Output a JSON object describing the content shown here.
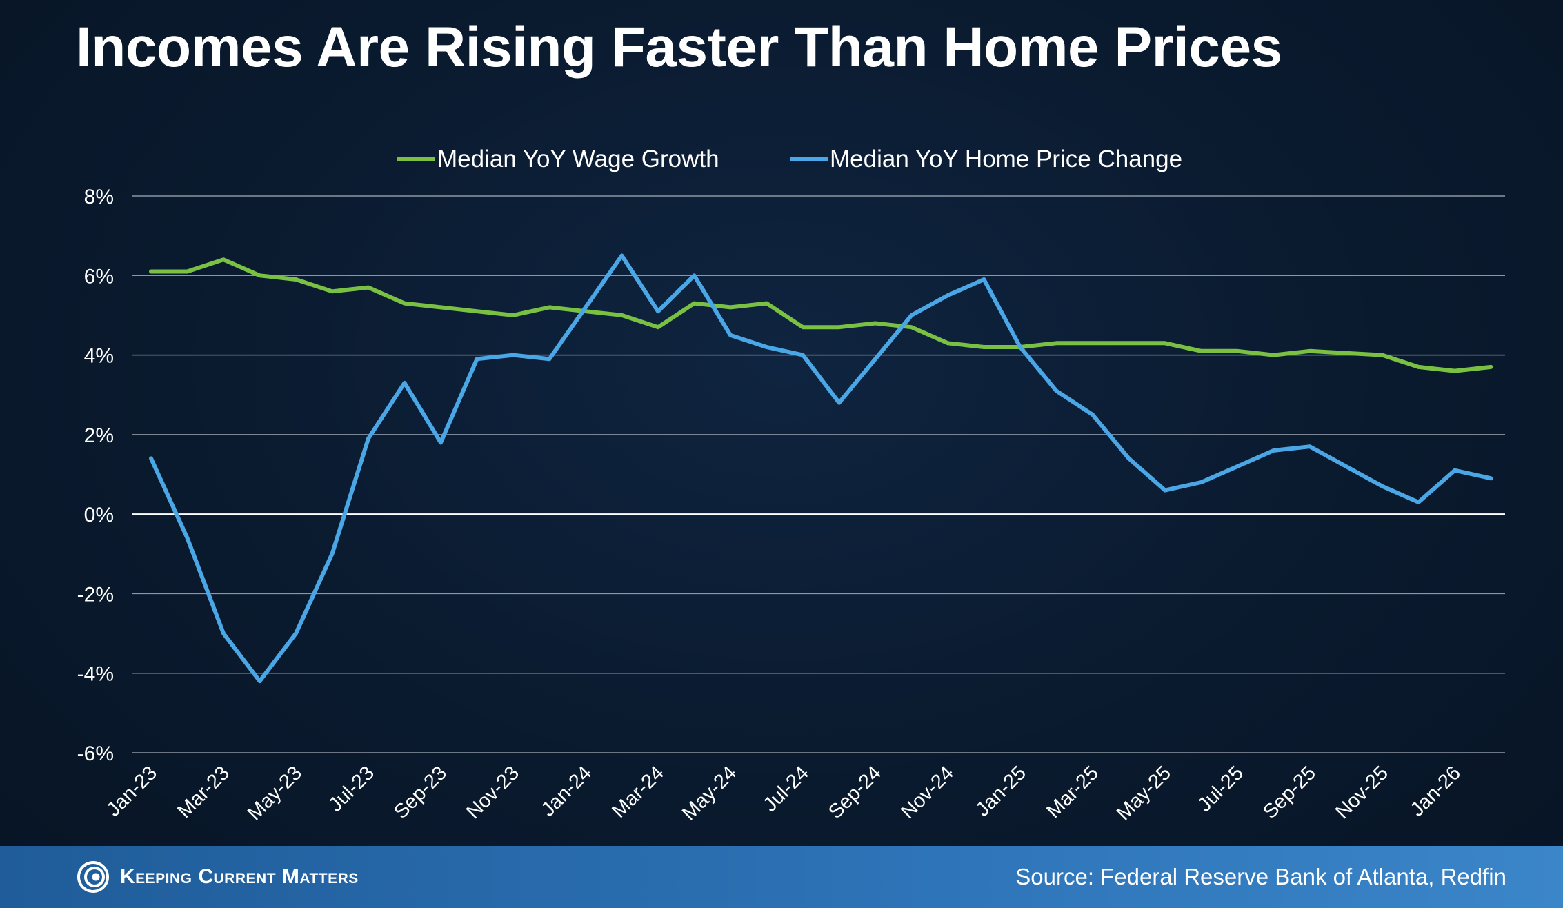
{
  "title": "Incomes Are Rising Faster Than Home Prices",
  "footer": {
    "brand": "Keeping Current Matters",
    "source": "Source: Federal Reserve Bank of Atlanta, Redfin"
  },
  "colors": {
    "wage": "#7ac143",
    "home": "#4ba6e6",
    "grid": "#8d96a3",
    "zero": "#ffffff"
  },
  "chart_data": {
    "type": "line",
    "title": "Incomes Are Rising Faster Than Home Prices",
    "xlabel": "",
    "ylabel": "",
    "ylim": [
      -6,
      8
    ],
    "y_ticks": [
      8,
      6,
      4,
      2,
      0,
      -2,
      -4,
      -6
    ],
    "y_tick_labels": [
      "8%",
      "6%",
      "4%",
      "2%",
      "0%",
      "-2%",
      "-4%",
      "-6%"
    ],
    "grid": true,
    "legend": "top-center",
    "x_tick_labels": [
      "Jan-23",
      "Mar-23",
      "May-23",
      "Jul-23",
      "Sep-23",
      "Nov-23",
      "Jan-24",
      "Mar-24",
      "May-24",
      "Jul-24",
      "Sep-24",
      "Nov-24",
      "Jan-25",
      "Mar-25",
      "May-25",
      "Jul-25",
      "Sep-25",
      "Nov-25",
      "Jan-26"
    ],
    "categories": [
      "Jan-23",
      "Feb-23",
      "Mar-23",
      "Apr-23",
      "May-23",
      "Jun-23",
      "Jul-23",
      "Aug-23",
      "Sep-23",
      "Oct-23",
      "Nov-23",
      "Dec-23",
      "Jan-24",
      "Feb-24",
      "Mar-24",
      "Apr-24",
      "May-24",
      "Jun-24",
      "Jul-24",
      "Aug-24",
      "Sep-24",
      "Oct-24",
      "Nov-24",
      "Dec-24",
      "Jan-25",
      "Feb-25",
      "Mar-25",
      "Apr-25",
      "May-25",
      "Jun-25",
      "Jul-25",
      "Aug-25",
      "Sep-25",
      "Oct-25",
      "Nov-25",
      "Dec-25",
      "Jan-26",
      "Feb-26"
    ],
    "series": [
      {
        "name": "Median YoY Wage Growth",
        "values": [
          6.1,
          6.1,
          6.4,
          6.0,
          5.9,
          5.6,
          5.7,
          5.3,
          5.2,
          5.1,
          5.0,
          5.2,
          5.1,
          5.0,
          4.7,
          5.3,
          5.2,
          5.3,
          4.7,
          4.7,
          4.8,
          4.7,
          4.3,
          4.2,
          4.2,
          4.3,
          4.3,
          4.3,
          4.3,
          4.1,
          4.1,
          4.0,
          4.1,
          4.05,
          4.0,
          3.7,
          3.6,
          3.7
        ]
      },
      {
        "name": "Median YoY Home Price Change",
        "values": [
          1.4,
          -0.6,
          -3.0,
          -4.2,
          -3.0,
          -1.0,
          1.9,
          3.3,
          1.8,
          3.9,
          4.0,
          3.9,
          5.2,
          6.5,
          5.1,
          6.0,
          4.5,
          4.2,
          4.0,
          2.8,
          3.9,
          5.0,
          5.5,
          5.9,
          4.2,
          3.1,
          2.5,
          1.4,
          0.6,
          0.8,
          1.2,
          1.6,
          1.7,
          1.2,
          0.7,
          0.3,
          1.1,
          0.9
        ]
      }
    ]
  }
}
